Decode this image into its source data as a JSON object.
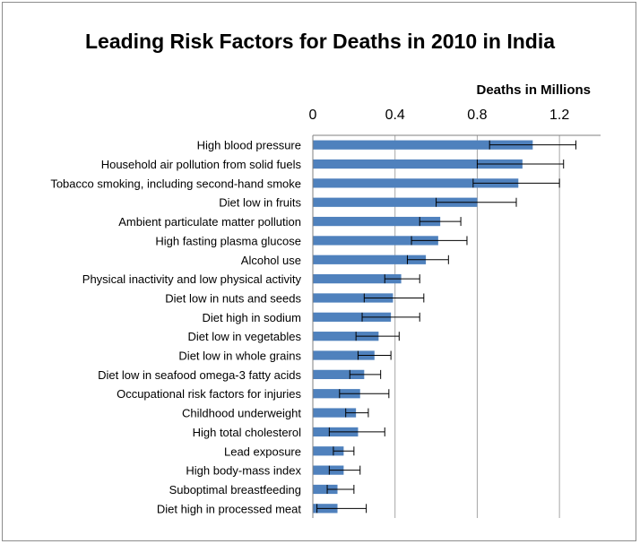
{
  "chart_data": {
    "type": "bar",
    "orientation": "horizontal",
    "title": "Leading Risk Factors for Deaths in 2010 in India",
    "xlabel": "Deaths in Millions",
    "xlim": [
      0,
      1.4
    ],
    "xticks": [
      0,
      0.4,
      0.8,
      1.2
    ],
    "xtick_labels": [
      "0",
      "0.4",
      "0.8",
      "1.2"
    ],
    "grid": "vertical",
    "bar_color": "#4f81bd",
    "error_bars": true,
    "categories": [
      "High blood pressure",
      "Household air pollution from solid fuels",
      "Tobacco smoking, including second-hand smoke",
      "Diet low in fruits",
      "Ambient particulate matter pollution",
      "High fasting plasma glucose",
      "Alcohol use",
      "Physical inactivity and low physical activity",
      "Diet low in nuts and seeds",
      "Diet high in sodium",
      "Diet low in vegetables",
      "Diet low in whole grains",
      "Diet low in seafood omega-3 fatty acids",
      "Occupational risk factors for injuries",
      "Childhood underweight",
      "High total cholesterol",
      "Lead exposure",
      "High body-mass index",
      "Suboptimal breastfeeding",
      "Diet high in processed meat"
    ],
    "values": [
      1.07,
      1.02,
      1.0,
      0.8,
      0.62,
      0.61,
      0.55,
      0.43,
      0.39,
      0.38,
      0.32,
      0.3,
      0.25,
      0.23,
      0.21,
      0.22,
      0.15,
      0.15,
      0.12,
      0.12
    ],
    "error_low": [
      0.86,
      0.8,
      0.78,
      0.6,
      0.52,
      0.48,
      0.46,
      0.35,
      0.25,
      0.24,
      0.21,
      0.22,
      0.18,
      0.13,
      0.16,
      0.08,
      0.1,
      0.08,
      0.07,
      0.02
    ],
    "error_high": [
      1.28,
      1.22,
      1.2,
      0.99,
      0.72,
      0.75,
      0.66,
      0.52,
      0.54,
      0.52,
      0.42,
      0.38,
      0.33,
      0.37,
      0.27,
      0.35,
      0.2,
      0.23,
      0.2,
      0.26
    ]
  }
}
